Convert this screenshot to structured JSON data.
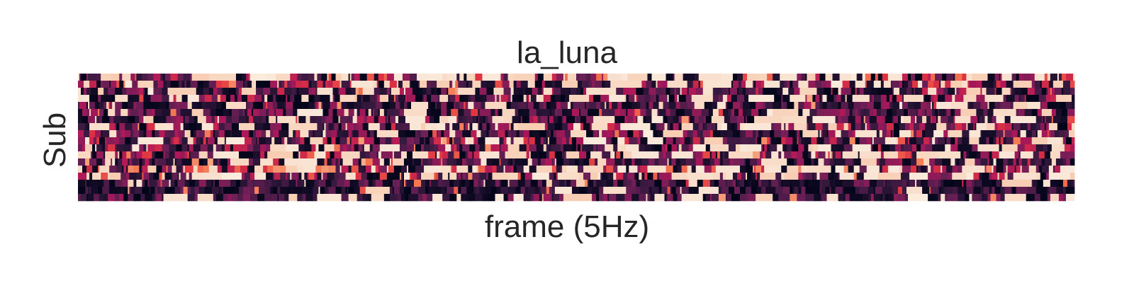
{
  "chart_data": {
    "type": "heatmap",
    "title": "la_luna",
    "xlabel": "frame (5Hz)",
    "ylabel": "Sub",
    "n_rows": 18,
    "n_frames": 700,
    "colormap": "rocket",
    "colormap_stops": [
      "#03051a",
      "#35193e",
      "#701f57",
      "#ad1759",
      "#e13342",
      "#f37651",
      "#f6b48f",
      "#faebdd"
    ],
    "value_range": [
      0,
      1
    ],
    "row_profiles": [
      {
        "bright_fraction": 0.34,
        "mean": 0.38
      },
      {
        "bright_fraction": 0.22,
        "mean": 0.33
      },
      {
        "bright_fraction": 0.14,
        "mean": 0.27
      },
      {
        "bright_fraction": 0.18,
        "mean": 0.28
      },
      {
        "bright_fraction": 0.08,
        "mean": 0.22
      },
      {
        "bright_fraction": 0.12,
        "mean": 0.24
      },
      {
        "bright_fraction": 0.16,
        "mean": 0.27
      },
      {
        "bright_fraction": 0.18,
        "mean": 0.29
      },
      {
        "bright_fraction": 0.12,
        "mean": 0.25
      },
      {
        "bright_fraction": 0.16,
        "mean": 0.3
      },
      {
        "bright_fraction": 0.14,
        "mean": 0.28
      },
      {
        "bright_fraction": 0.22,
        "mean": 0.35
      },
      {
        "bright_fraction": 0.12,
        "mean": 0.24
      },
      {
        "bright_fraction": 0.38,
        "mean": 0.42
      },
      {
        "bright_fraction": 0.24,
        "mean": 0.34
      },
      {
        "bright_fraction": 0.06,
        "mean": 0.18
      },
      {
        "bright_fraction": 0.04,
        "mean": 0.15
      },
      {
        "bright_fraction": 0.1,
        "mean": 0.21
      }
    ]
  }
}
